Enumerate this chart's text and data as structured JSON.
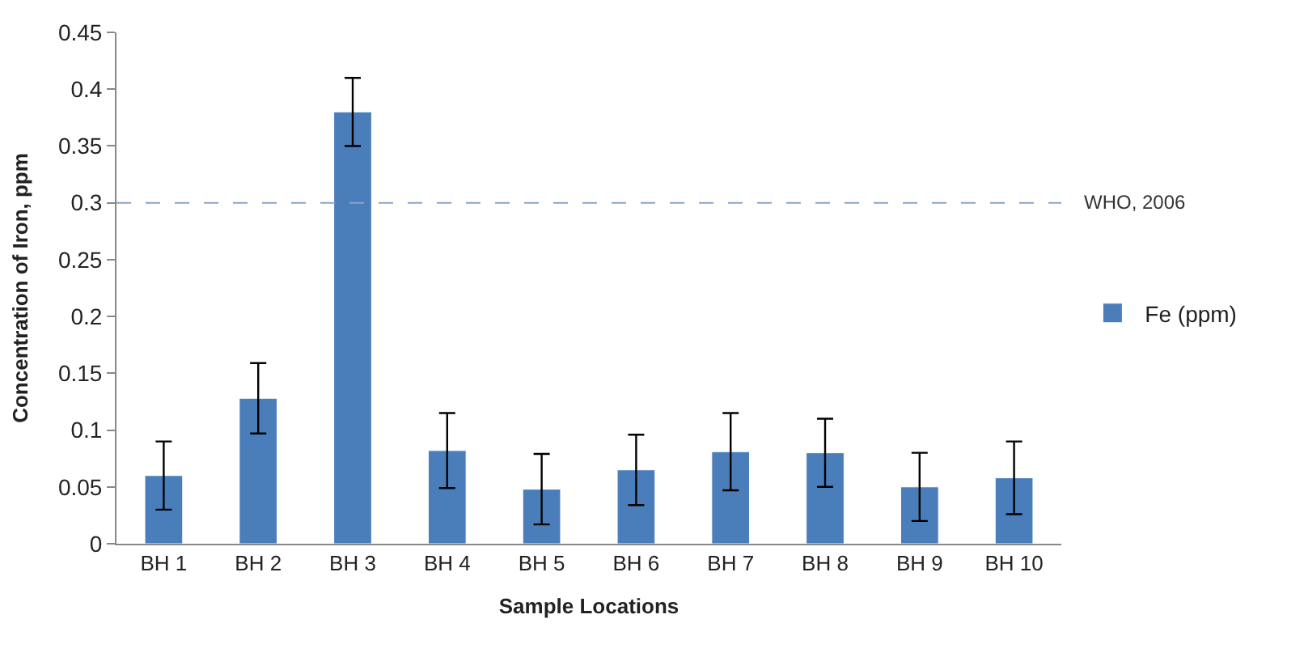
{
  "chart_data": {
    "type": "bar",
    "xlabel": "Sample Locations",
    "ylabel": "Concentration of Iron, ppm",
    "categories": [
      "BH 1",
      "BH 2",
      "BH 3",
      "BH 4",
      "BH 5",
      "BH 6",
      "BH 7",
      "BH 8",
      "BH 9",
      "BH 10"
    ],
    "series": [
      {
        "name": "Fe (ppm)",
        "color": "#4a7ebb",
        "values": [
          0.06,
          0.128,
          0.38,
          0.082,
          0.048,
          0.065,
          0.081,
          0.08,
          0.05,
          0.058
        ],
        "errors": [
          0.03,
          0.031,
          0.03,
          0.033,
          0.031,
          0.031,
          0.034,
          0.03,
          0.03,
          0.032
        ]
      }
    ],
    "ylim": [
      0,
      0.45
    ],
    "yticks": [
      0,
      0.05,
      0.1,
      0.15,
      0.2,
      0.25,
      0.3,
      0.35,
      0.4,
      0.45
    ],
    "ref_lines": [
      {
        "axis": "y",
        "value": 0.3,
        "label": "WHO, 2006",
        "color": "#8aa3c8",
        "line_style": "dashed"
      }
    ],
    "grid": false,
    "legend": "right"
  }
}
